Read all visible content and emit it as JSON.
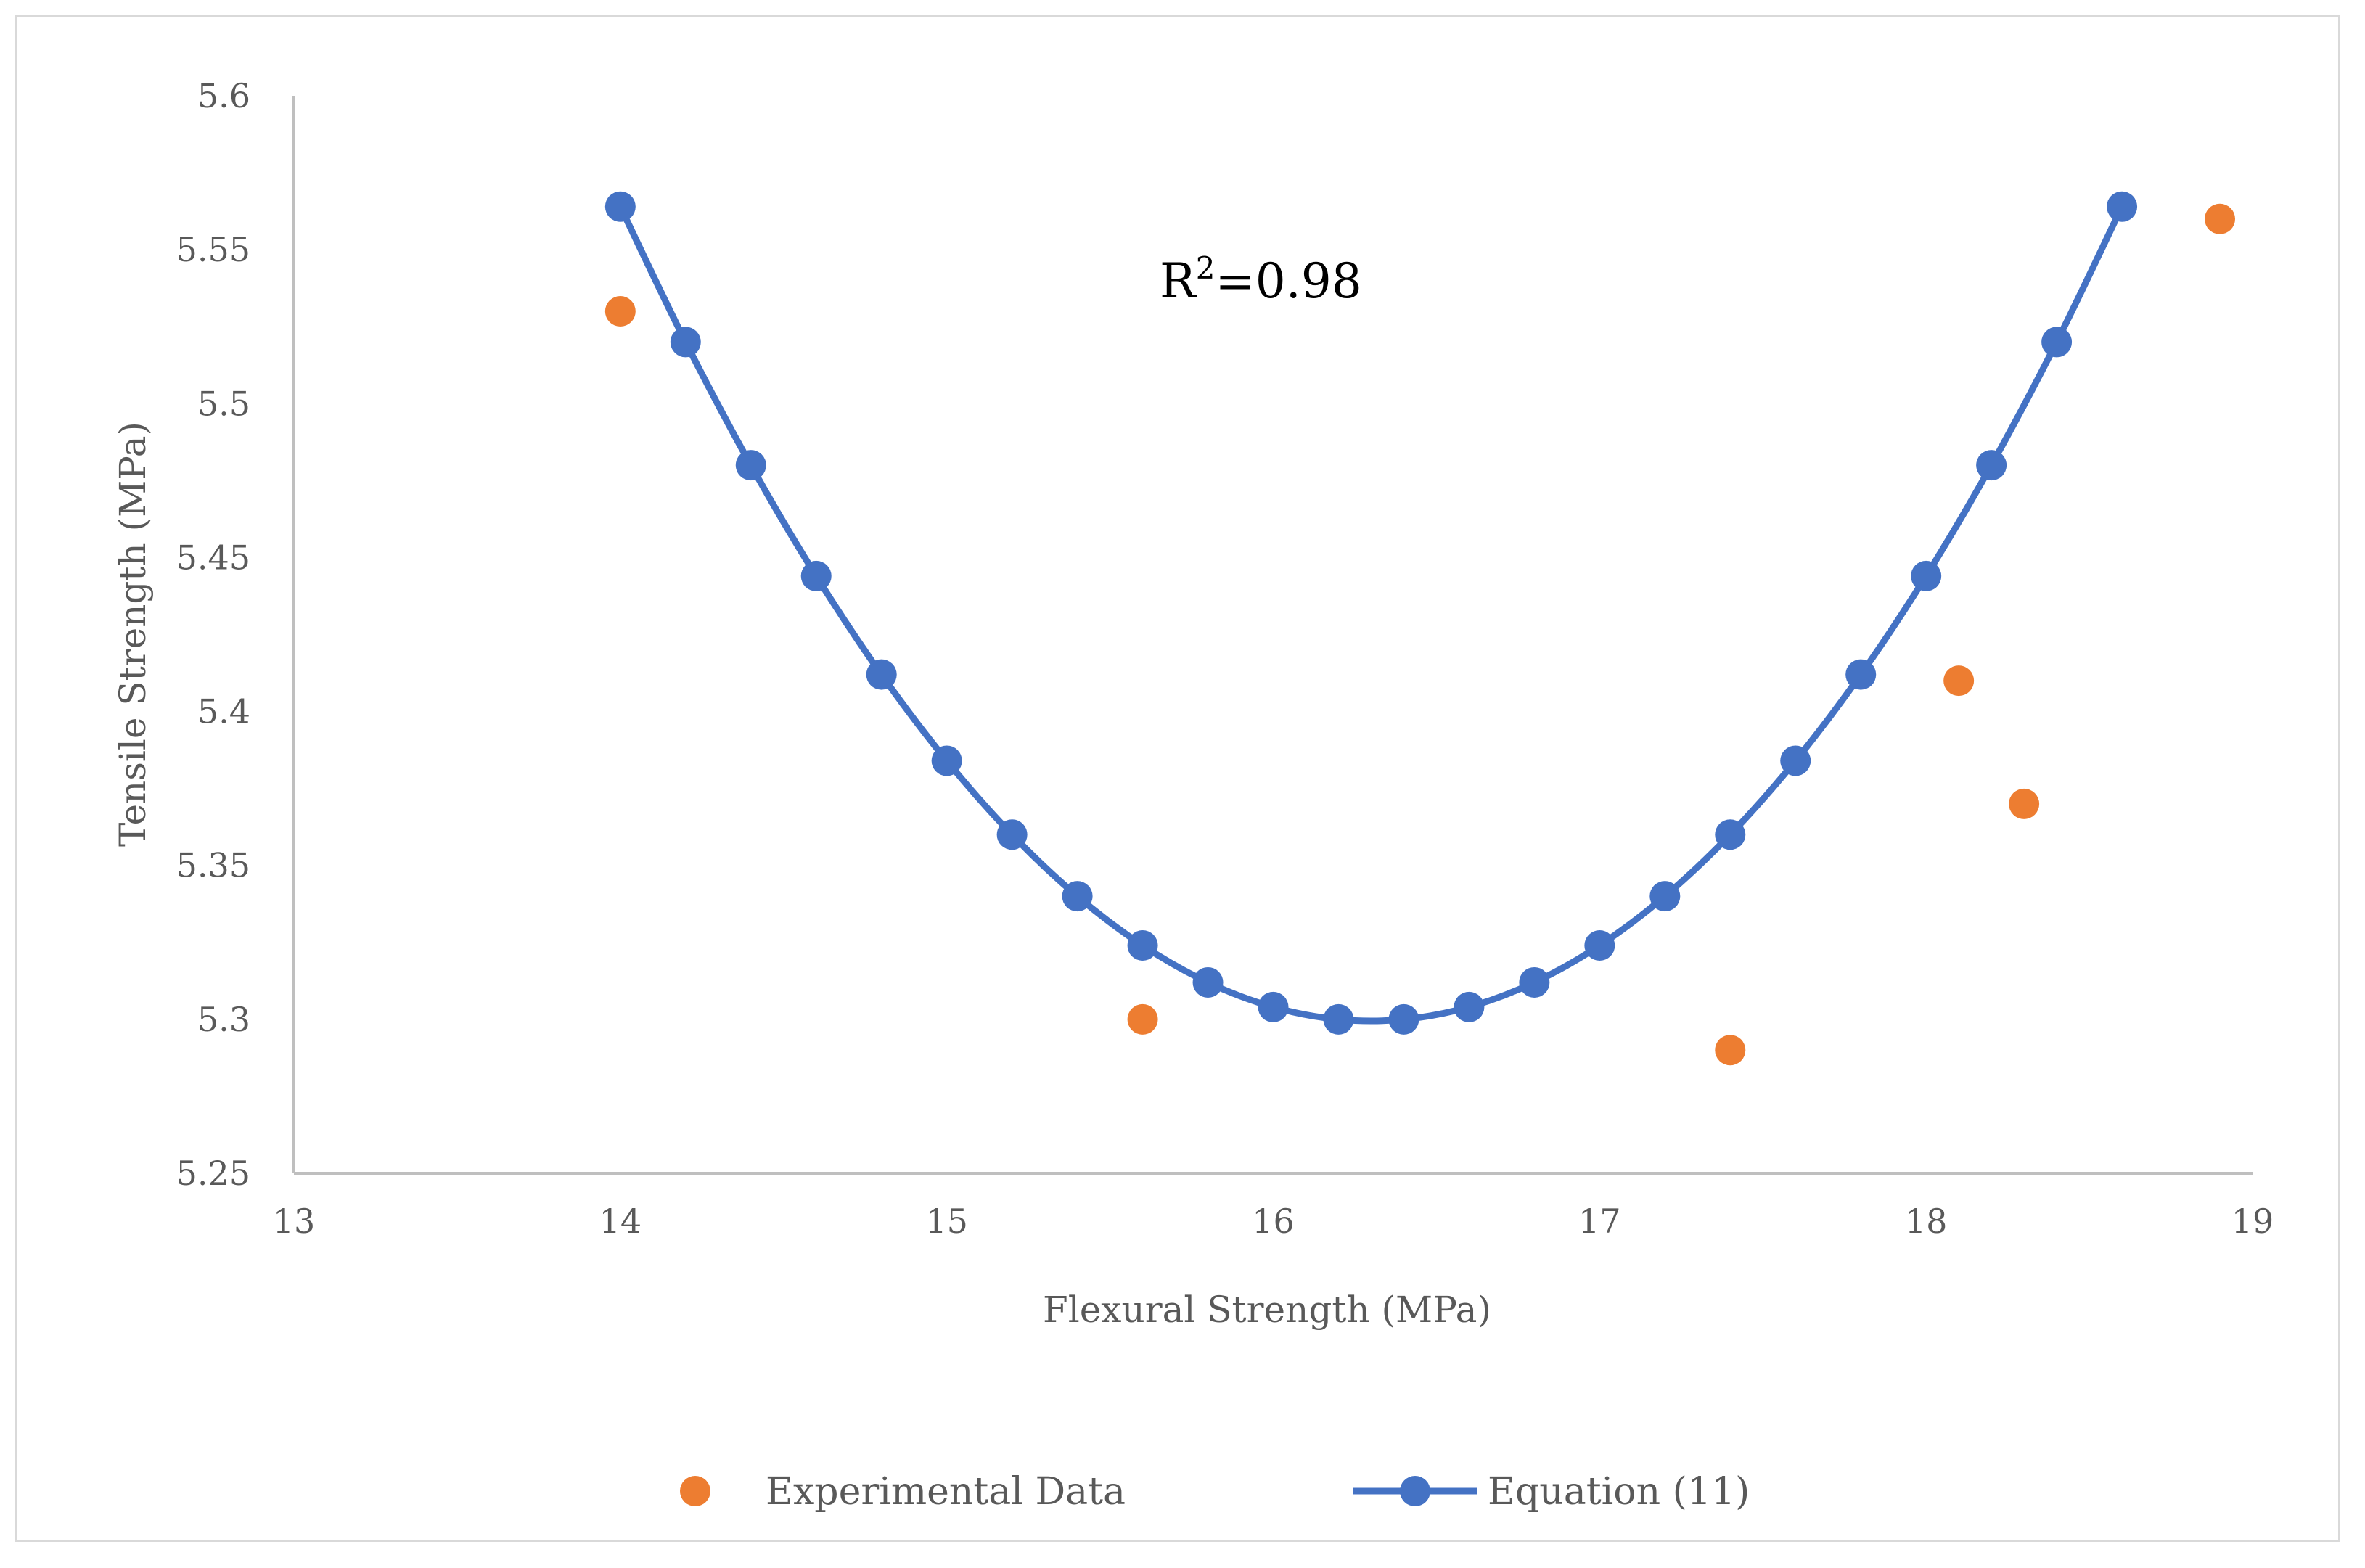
{
  "chart_data": {
    "type": "scatter",
    "title": "",
    "xlabel": "Flexural Strength (MPa)",
    "ylabel": "Tensile Strength (MPa)",
    "xlim": [
      13,
      19
    ],
    "ylim": [
      5.25,
      5.6
    ],
    "x_ticks": [
      13,
      14,
      15,
      16,
      17,
      18,
      19
    ],
    "x_tick_labels": [
      "13",
      "14",
      "15",
      "16",
      "17",
      "18",
      "19"
    ],
    "y_ticks": [
      5.25,
      5.3,
      5.35,
      5.4,
      5.45,
      5.5,
      5.55,
      5.6
    ],
    "y_tick_labels": [
      "5.25",
      "5.3",
      "5.35",
      "5.4",
      "5.45",
      "5.5",
      "5.55",
      "5.6"
    ],
    "grid": false,
    "legend_position": "bottom",
    "annotation": {
      "base": "R",
      "sup": "2",
      "rest": "=0.98"
    },
    "series": [
      {
        "name": "Experimental Data",
        "kind": "scatter",
        "color": "#ED7D31",
        "x": [
          14.0,
          15.6,
          17.4,
          18.1,
          18.3,
          18.9
        ],
        "y": [
          5.53,
          5.3,
          5.29,
          5.41,
          5.37,
          5.56
        ]
      },
      {
        "name": "Equation (11)",
        "kind": "line-markers",
        "color": "#4472C4",
        "x": [
          14.0,
          14.2,
          14.4,
          14.6,
          14.8,
          15.0,
          15.2,
          15.4,
          15.6,
          15.8,
          16.0,
          16.2,
          16.4,
          16.6,
          16.8,
          17.0,
          17.2,
          17.4,
          17.6,
          17.8,
          18.0,
          18.2,
          18.4,
          18.6
        ],
        "y": [
          5.564,
          5.52,
          5.48,
          5.444,
          5.412,
          5.384,
          5.36,
          5.34,
          5.324,
          5.312,
          5.304,
          5.3,
          5.3,
          5.304,
          5.312,
          5.324,
          5.34,
          5.36,
          5.384,
          5.412,
          5.444,
          5.48,
          5.52,
          5.564
        ]
      }
    ]
  }
}
